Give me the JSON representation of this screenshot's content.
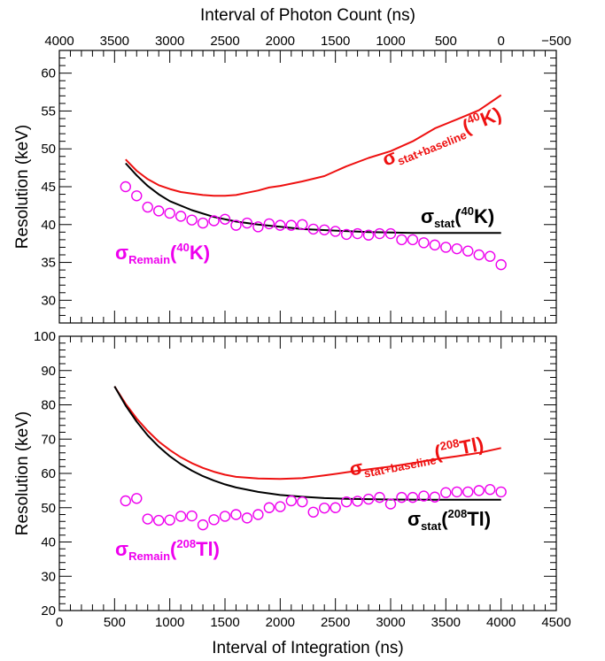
{
  "chart_data": [
    {
      "type": "line",
      "panel": "top",
      "x2label": "Interval of Photon Count (ns)",
      "x2lim": [
        4000,
        -500
      ],
      "x2ticks": [
        4000,
        3500,
        3000,
        2500,
        2000,
        1500,
        1000,
        500,
        0,
        -500
      ],
      "x2ticklabels": [
        "4000",
        "3500",
        "3000",
        "2500",
        "2000",
        "1500",
        "1000",
        "500",
        "0",
        "−500"
      ],
      "xlim": [
        0,
        4500
      ],
      "ylabel": "Resolution (keV)",
      "ylim": [
        27,
        63
      ],
      "yticks": [
        30,
        35,
        40,
        45,
        50,
        55,
        60
      ],
      "series": [
        {
          "name": "σ",
          "sub": "stat+baseline",
          "iso_open": "(",
          "iso_mass": "40",
          "iso_elem": "K)",
          "color": "#ee1111",
          "style": "line",
          "x": [
            600,
            700,
            800,
            900,
            1000,
            1100,
            1200,
            1300,
            1400,
            1500,
            1600,
            1700,
            1800,
            1900,
            2000,
            2200,
            2400,
            2600,
            2800,
            3000,
            3200,
            3400,
            3600,
            3800,
            4000
          ],
          "y": [
            48.6,
            47.1,
            46.0,
            45.2,
            44.7,
            44.3,
            44.1,
            43.9,
            43.8,
            43.8,
            43.9,
            44.2,
            44.5,
            44.9,
            45.1,
            45.7,
            46.4,
            47.7,
            48.8,
            49.7,
            51.0,
            52.7,
            53.9,
            55.1,
            57.1
          ]
        },
        {
          "name": "σ",
          "sub": "stat",
          "iso_open": "(",
          "iso_mass": "40",
          "iso_elem": "K)",
          "color": "#000000",
          "style": "line",
          "x": [
            600,
            700,
            800,
            900,
            1000,
            1200,
            1400,
            1600,
            1800,
            2000,
            2200,
            2500,
            2800,
            3200,
            3600,
            4000
          ],
          "y": [
            48.1,
            46.5,
            45.1,
            44.0,
            43.1,
            41.9,
            41.0,
            40.4,
            40.0,
            39.7,
            39.4,
            39.2,
            39.0,
            38.9,
            38.9,
            38.9
          ]
        },
        {
          "name": "σ",
          "sub": "Remain",
          "iso_open": "(",
          "iso_mass": "40",
          "iso_elem": "K)",
          "color": "#ee00ee",
          "style": "markers",
          "x": [
            600,
            700,
            800,
            900,
            1000,
            1100,
            1200,
            1300,
            1400,
            1500,
            1600,
            1700,
            1800,
            1900,
            2000,
            2100,
            2200,
            2300,
            2400,
            2500,
            2600,
            2700,
            2800,
            2900,
            3000,
            3100,
            3200,
            3300,
            3400,
            3500,
            3600,
            3700,
            3800,
            3900,
            4000
          ],
          "y": [
            45.0,
            43.8,
            42.3,
            41.8,
            41.5,
            41.1,
            40.6,
            40.2,
            40.5,
            40.7,
            39.9,
            40.2,
            39.7,
            40.1,
            39.9,
            39.9,
            40.0,
            39.4,
            39.3,
            39.1,
            38.7,
            38.8,
            38.6,
            38.8,
            38.8,
            38.0,
            38.0,
            37.6,
            37.3,
            37.0,
            36.8,
            36.5,
            36.0,
            35.8,
            34.7
          ]
        }
      ]
    },
    {
      "type": "line",
      "panel": "bottom",
      "xlabel": "Interval of Integration (ns)",
      "xlim": [
        0,
        4500
      ],
      "xticks": [
        0,
        500,
        1000,
        1500,
        2000,
        2500,
        3000,
        3500,
        4000,
        4500
      ],
      "ylabel": "Resolution (keV)",
      "ylim": [
        20,
        100
      ],
      "yticks": [
        20,
        30,
        40,
        50,
        60,
        70,
        80,
        90,
        100
      ],
      "series": [
        {
          "name": "σ",
          "sub": "stat+baseline",
          "iso_open": "(",
          "iso_mass": "208",
          "iso_elem": "Tl)",
          "color": "#ee1111",
          "style": "line",
          "x": [
            500,
            600,
            700,
            800,
            900,
            1000,
            1100,
            1200,
            1300,
            1400,
            1500,
            1600,
            1800,
            2000,
            2200,
            2400,
            2600,
            2800,
            3000,
            3200,
            3400,
            3600,
            3800,
            4000
          ],
          "y": [
            85.4,
            80.3,
            76.0,
            72.4,
            69.3,
            66.8,
            64.7,
            63.0,
            61.6,
            60.5,
            59.6,
            59.0,
            58.5,
            58.4,
            58.6,
            59.4,
            60.3,
            61.2,
            62.0,
            63.0,
            64.1,
            65.0,
            66.0,
            67.4
          ]
        },
        {
          "name": "σ",
          "sub": "stat",
          "iso_open": "(",
          "iso_mass": "208",
          "iso_elem": "Tl)",
          "color": "#000000",
          "style": "line",
          "x": [
            500,
            600,
            700,
            800,
            900,
            1000,
            1100,
            1200,
            1300,
            1400,
            1500,
            1600,
            1800,
            2000,
            2200,
            2400,
            2600,
            2800,
            3000,
            3400,
            3800,
            4000
          ],
          "y": [
            85.4,
            79.8,
            75.1,
            71.1,
            67.8,
            65.0,
            62.7,
            60.8,
            59.2,
            57.9,
            56.8,
            55.9,
            54.6,
            53.7,
            53.2,
            52.8,
            52.6,
            52.5,
            52.4,
            52.3,
            52.3,
            52.3
          ]
        },
        {
          "name": "σ",
          "sub": "Remain",
          "iso_open": "(",
          "iso_mass": "208",
          "iso_elem": "Tl)",
          "color": "#ee00ee",
          "style": "markers",
          "x": [
            600,
            700,
            800,
            900,
            1000,
            1100,
            1200,
            1300,
            1400,
            1500,
            1600,
            1700,
            1800,
            1900,
            2000,
            2100,
            2200,
            2300,
            2400,
            2500,
            2600,
            2700,
            2800,
            2900,
            3000,
            3100,
            3200,
            3300,
            3400,
            3500,
            3600,
            3700,
            3800,
            3900,
            4000
          ],
          "y": [
            52.0,
            52.7,
            46.7,
            46.3,
            46.4,
            47.5,
            47.6,
            45.0,
            46.5,
            47.5,
            48.0,
            47.0,
            48.0,
            50.0,
            50.3,
            52.0,
            51.7,
            48.7,
            49.9,
            50.0,
            51.7,
            51.9,
            52.5,
            53.0,
            51.1,
            53.0,
            53.0,
            53.4,
            53.1,
            54.4,
            54.6,
            54.6,
            55.0,
            55.3,
            54.6
          ]
        }
      ]
    }
  ]
}
